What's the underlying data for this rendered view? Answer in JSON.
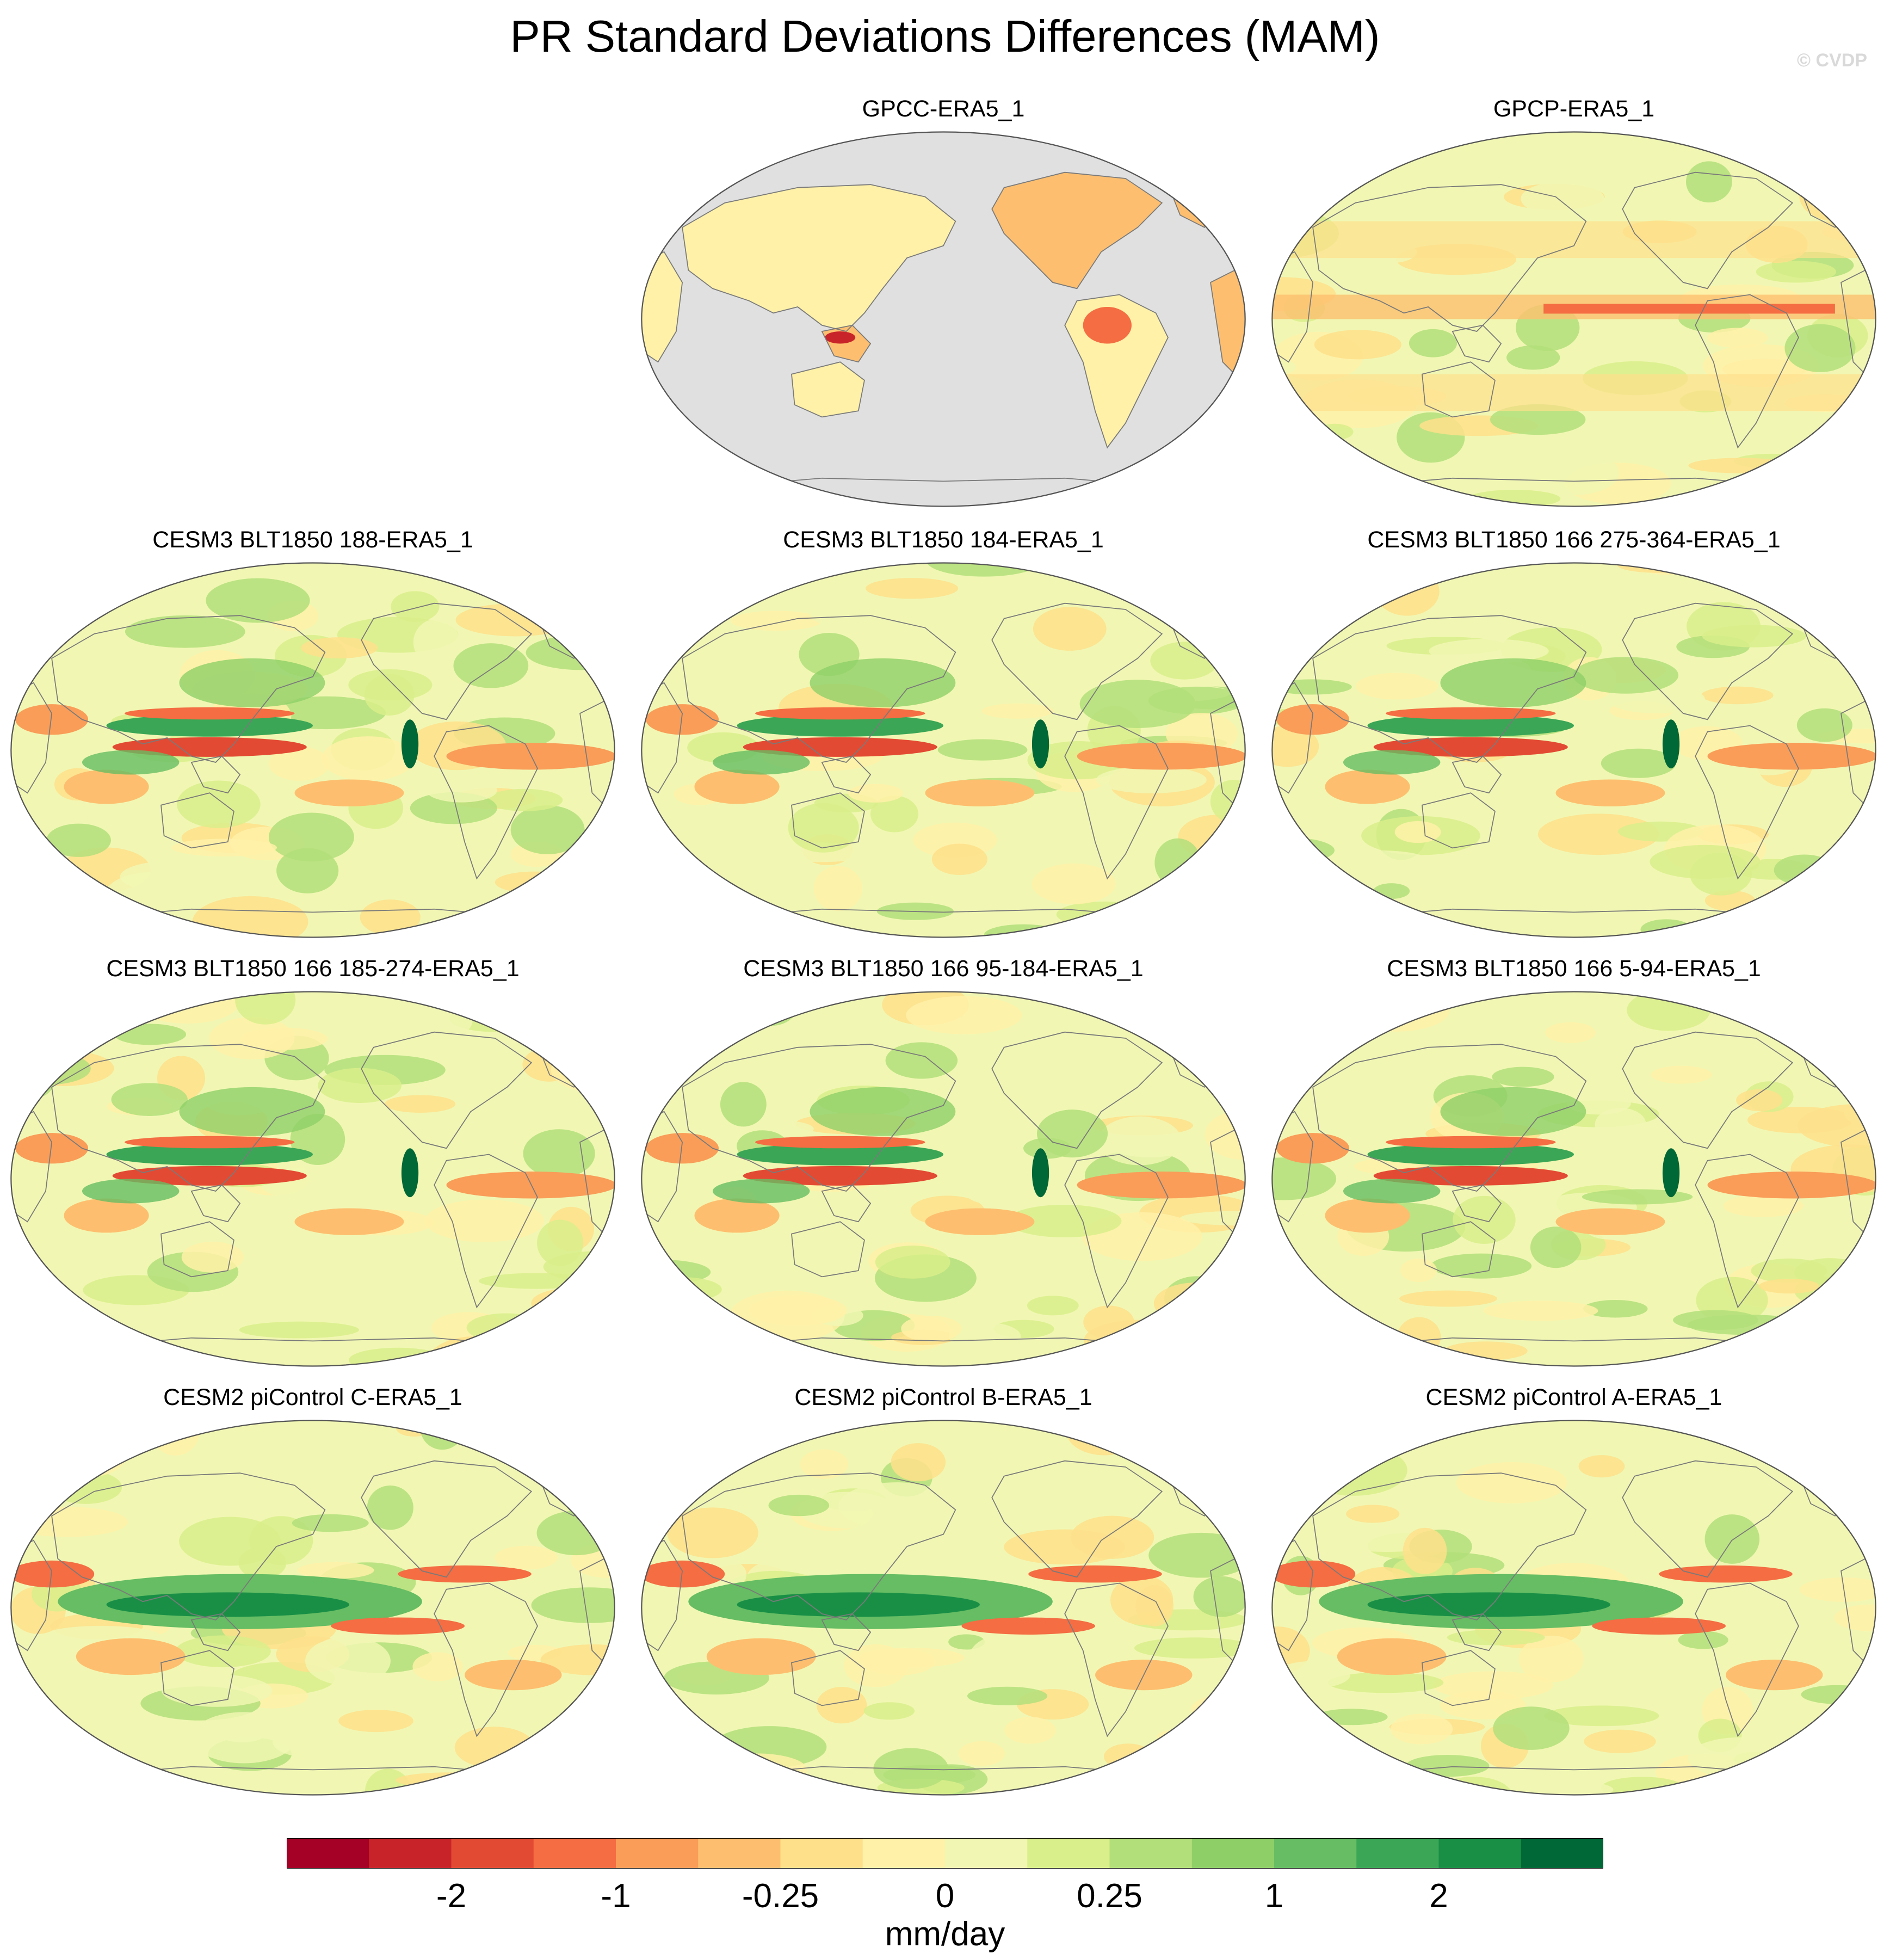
{
  "title": "PR Standard Deviations Differences (MAM)",
  "watermark": "© CVDP",
  "panels": [
    {
      "id": "gpcc",
      "label": "GPCC-ERA5_1",
      "land_only": true
    },
    {
      "id": "gpcp",
      "label": "GPCP-ERA5_1",
      "land_only": false
    },
    {
      "id": "cesm3-188",
      "label": "CESM3 BLT1850 188-ERA5_1",
      "land_only": false
    },
    {
      "id": "cesm3-184",
      "label": "CESM3 BLT1850 184-ERA5_1",
      "land_only": false
    },
    {
      "id": "cesm3-166-275",
      "label": "CESM3 BLT1850 166 275-364-ERA5_1",
      "land_only": false
    },
    {
      "id": "cesm3-166-185",
      "label": "CESM3 BLT1850 166 185-274-ERA5_1",
      "land_only": false
    },
    {
      "id": "cesm3-166-95",
      "label": "CESM3 BLT1850 166 95-184-ERA5_1",
      "land_only": false
    },
    {
      "id": "cesm3-166-5",
      "label": "CESM3 BLT1850 166 5-94-ERA5_1",
      "land_only": false
    },
    {
      "id": "cesm2-c",
      "label": "CESM2 piControl C-ERA5_1",
      "land_only": false
    },
    {
      "id": "cesm2-b",
      "label": "CESM2 piControl B-ERA5_1",
      "land_only": false
    },
    {
      "id": "cesm2-a",
      "label": "CESM2 piControl A-ERA5_1",
      "land_only": false
    }
  ],
  "colorbar": {
    "units": "mm/day",
    "colors": [
      "#a50026",
      "#c9232a",
      "#e34a33",
      "#f46d43",
      "#f99d59",
      "#fdbf6f",
      "#fee08b",
      "#fff1a8",
      "#f1f7b3",
      "#d9ef8b",
      "#b3df7a",
      "#8fcf68",
      "#66bd63",
      "#3aa656",
      "#198f46",
      "#006837"
    ],
    "tick_labels": [
      {
        "text": "-2",
        "boundary": 2
      },
      {
        "text": "-1",
        "boundary": 4
      },
      {
        "text": "-0.25",
        "boundary": 6
      },
      {
        "text": "0",
        "boundary": 8
      },
      {
        "text": "0.25",
        "boundary": 10
      },
      {
        "text": "1",
        "boundary": 12
      },
      {
        "text": "2",
        "boundary": 14
      }
    ]
  },
  "colors": {
    "background": "#ffffff",
    "land_mask": "#e0e0e0",
    "coastline": "#7a7a7a"
  }
}
